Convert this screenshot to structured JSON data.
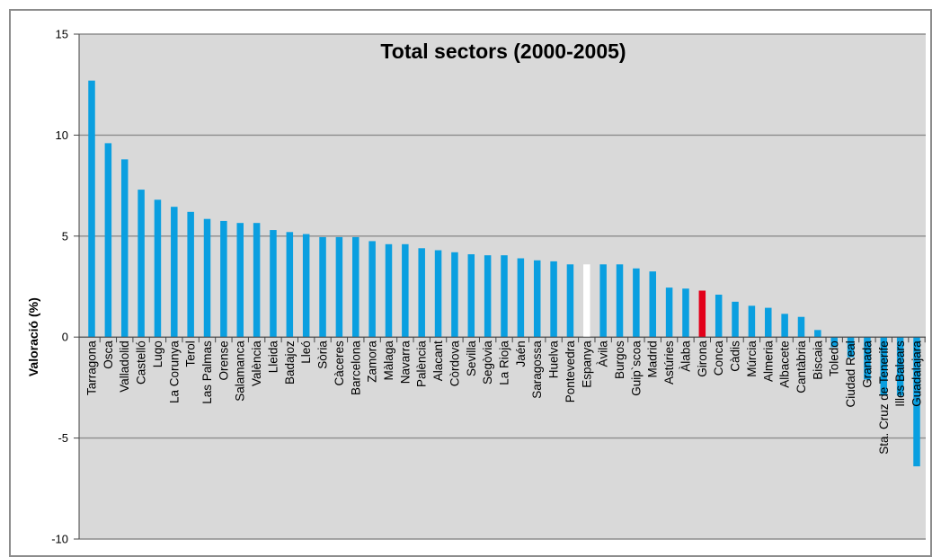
{
  "chart_data": {
    "type": "bar",
    "title": "Total sectors (2000-2005)",
    "xlabel": "",
    "ylabel": "Valoració (%)",
    "ylim": [
      -10,
      15
    ],
    "yticks": [
      15,
      10,
      5,
      0,
      -5,
      -10
    ],
    "grid": true,
    "colors": {
      "default": "#0a9fe0",
      "Espanya": "#ffffff",
      "Girona": "#e2001a",
      "plot_bg": "#d9d9d9",
      "grid": "#8c8c8c"
    },
    "categories": [
      "Tarragona",
      "Osca",
      "Valladolid",
      "Castelló",
      "Lugo",
      "La Corunya",
      "Terol",
      "Las Palmas",
      "Orense",
      "Salamanca",
      "València",
      "Lleida",
      "Badajoz",
      "Lleó",
      "Sòria",
      "Càceres",
      "Barcelona",
      "Zamora",
      "Màlaga",
      "Navarra",
      "Palència",
      "Alacant",
      "Còrdova",
      "Sevilla",
      "Segòvia",
      "La Rioja",
      "Jaén",
      "Saragossa",
      "Huelva",
      "Pontevedra",
      "Espanya",
      "Àvila",
      "Burgos",
      "Guip`scoa",
      "Madrid",
      "Astúries",
      "Àlaba",
      "Girona",
      "Conca",
      "Càdis",
      "Múrcia",
      "Almeria",
      "Albacete",
      "Cantàbria",
      "Biscaia",
      "Toledo",
      "Ciudad Real",
      "Granada",
      "Sta. Cruz de Tenerife",
      "Illes Balears",
      "Guadalajara"
    ],
    "values": [
      12.7,
      9.6,
      8.8,
      7.3,
      6.8,
      6.45,
      6.2,
      5.85,
      5.75,
      5.65,
      5.65,
      5.3,
      5.2,
      5.1,
      4.95,
      4.95,
      4.95,
      4.75,
      4.6,
      4.6,
      4.4,
      4.3,
      4.2,
      4.1,
      4.05,
      4.05,
      3.9,
      3.8,
      3.75,
      3.6,
      3.6,
      3.6,
      3.6,
      3.4,
      3.25,
      2.45,
      2.4,
      2.3,
      2.1,
      1.75,
      1.55,
      1.45,
      1.15,
      1.0,
      0.35,
      -0.5,
      -1.0,
      -2.1,
      -2.9,
      -2.9,
      -6.4
    ]
  }
}
